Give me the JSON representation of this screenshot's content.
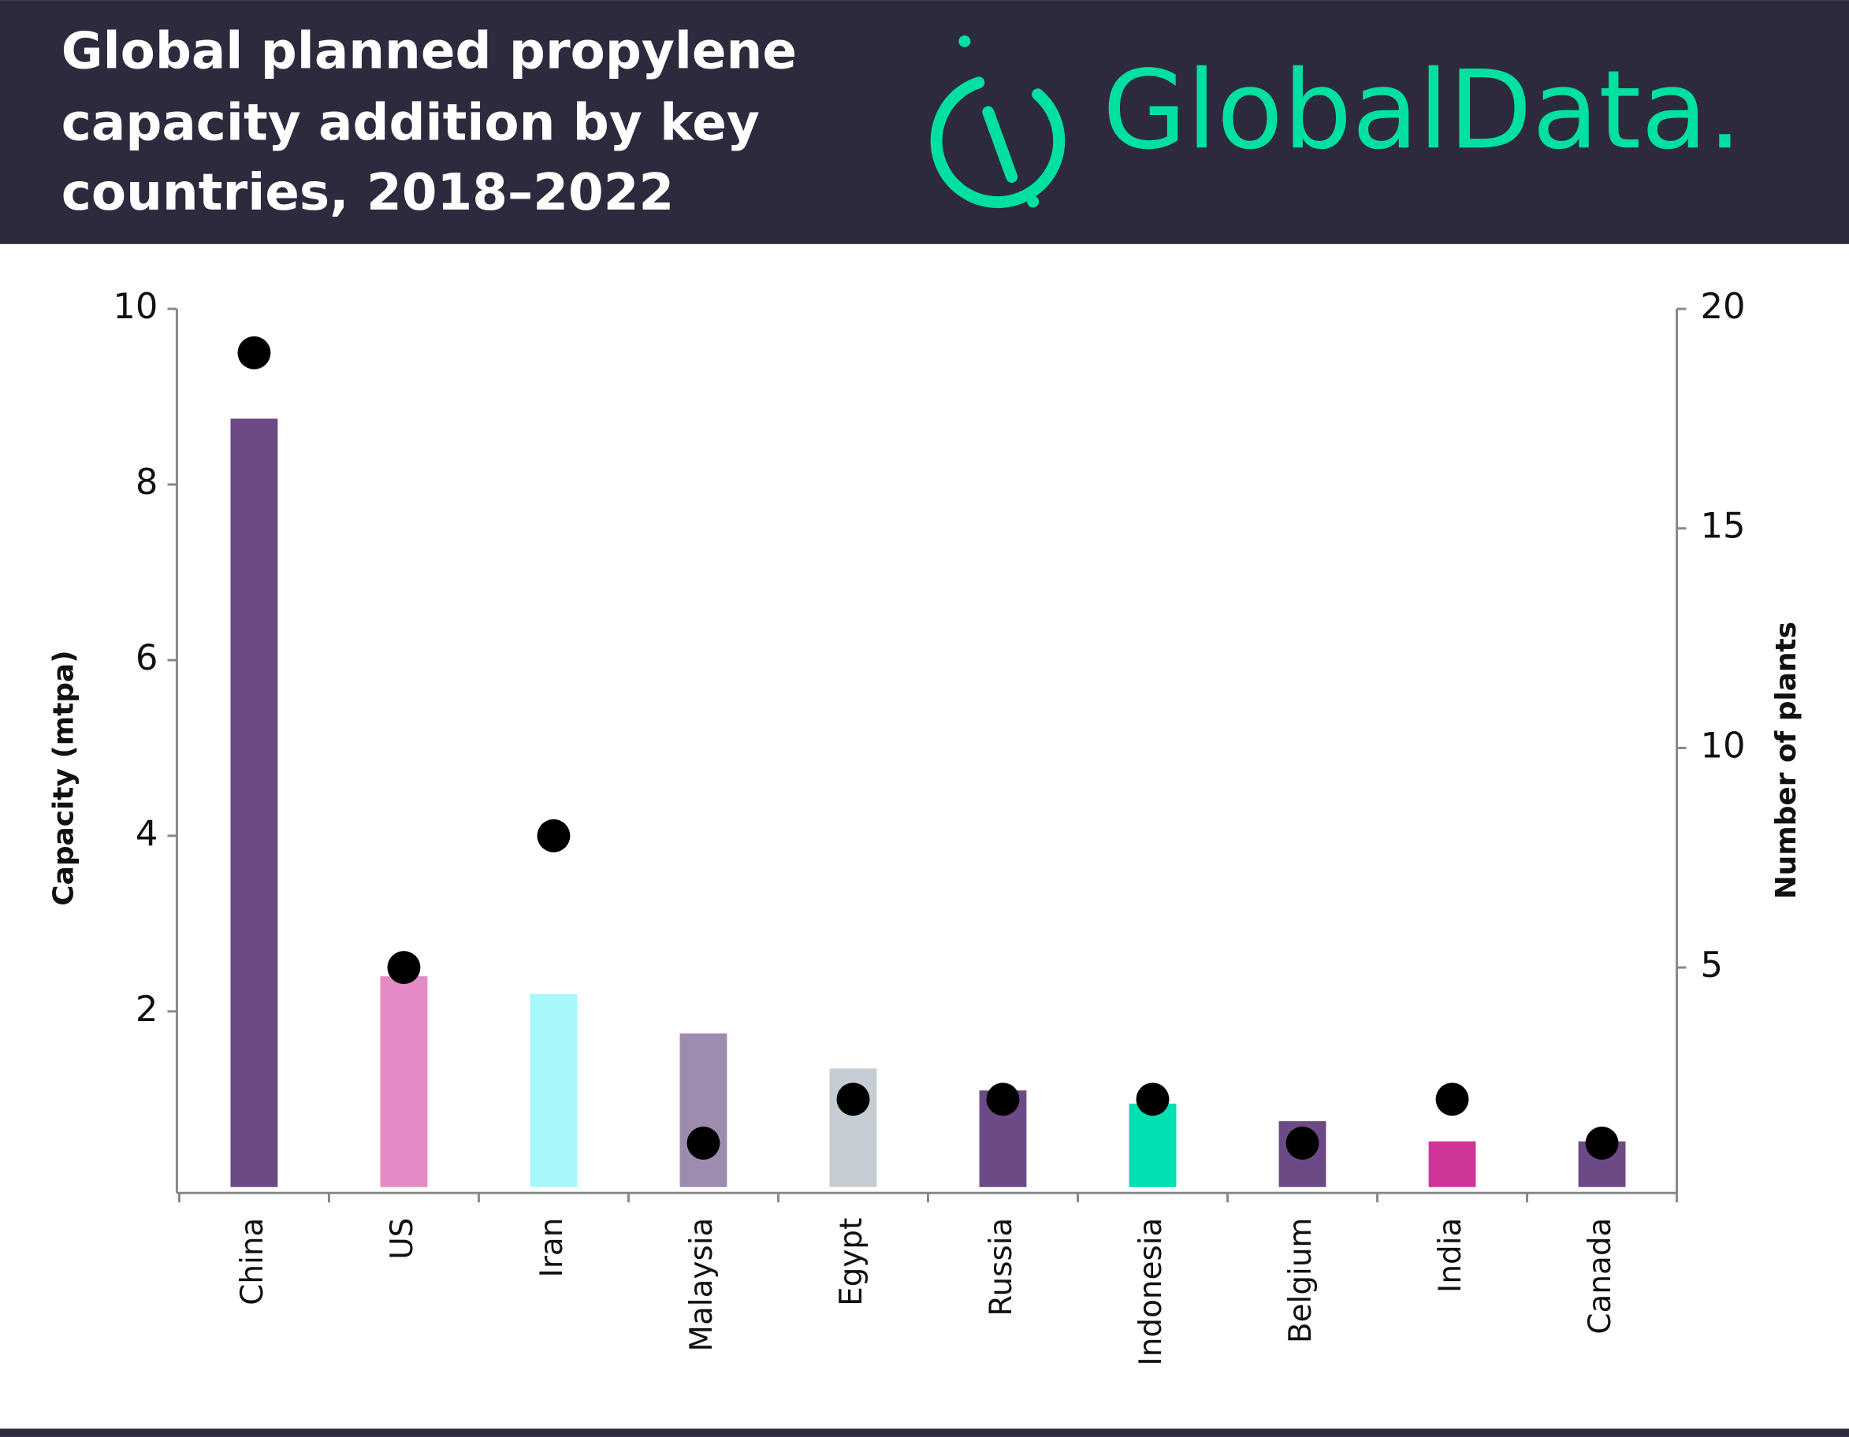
{
  "chart_data": {
    "type": "bar",
    "title": [
      "Global planned propylene",
      "capacity addition by key",
      "countries, 2018–2022"
    ],
    "brand": "GlobalData.",
    "categories": [
      "China",
      "US",
      "Iran",
      "Malaysia",
      "Egypt",
      "Russia",
      "Indonesia",
      "Belgium",
      "India",
      "Canada"
    ],
    "series": [
      {
        "values": [
          8.75,
          2.4,
          2.2,
          1.75,
          1.35,
          1.1,
          0.95,
          0.75,
          0.52,
          0.52
        ],
        "colors": [
          "#6b4a85",
          "#e38bc2",
          "#a7f8fb",
          "#9e8bb0",
          "#c5cdd3",
          "#6b4a85",
          "#00e0b0",
          "#6b4a85",
          "#d0359a",
          "#6b4a85"
        ]
      },
      {
        "type": "scatter",
        "axis": "y2",
        "color": "#000000",
        "values": [
          19,
          5,
          8,
          1,
          2,
          2,
          2,
          1,
          2,
          1
        ]
      }
    ],
    "ylabel": "Capacity (mtpa)",
    "y2label": "Number of plants",
    "ylim": [
      0,
      10
    ],
    "yticks": [
      2,
      4,
      6,
      8,
      10
    ],
    "y2lim": [
      0,
      20
    ],
    "y2ticks": [
      5,
      10,
      15,
      20
    ]
  }
}
